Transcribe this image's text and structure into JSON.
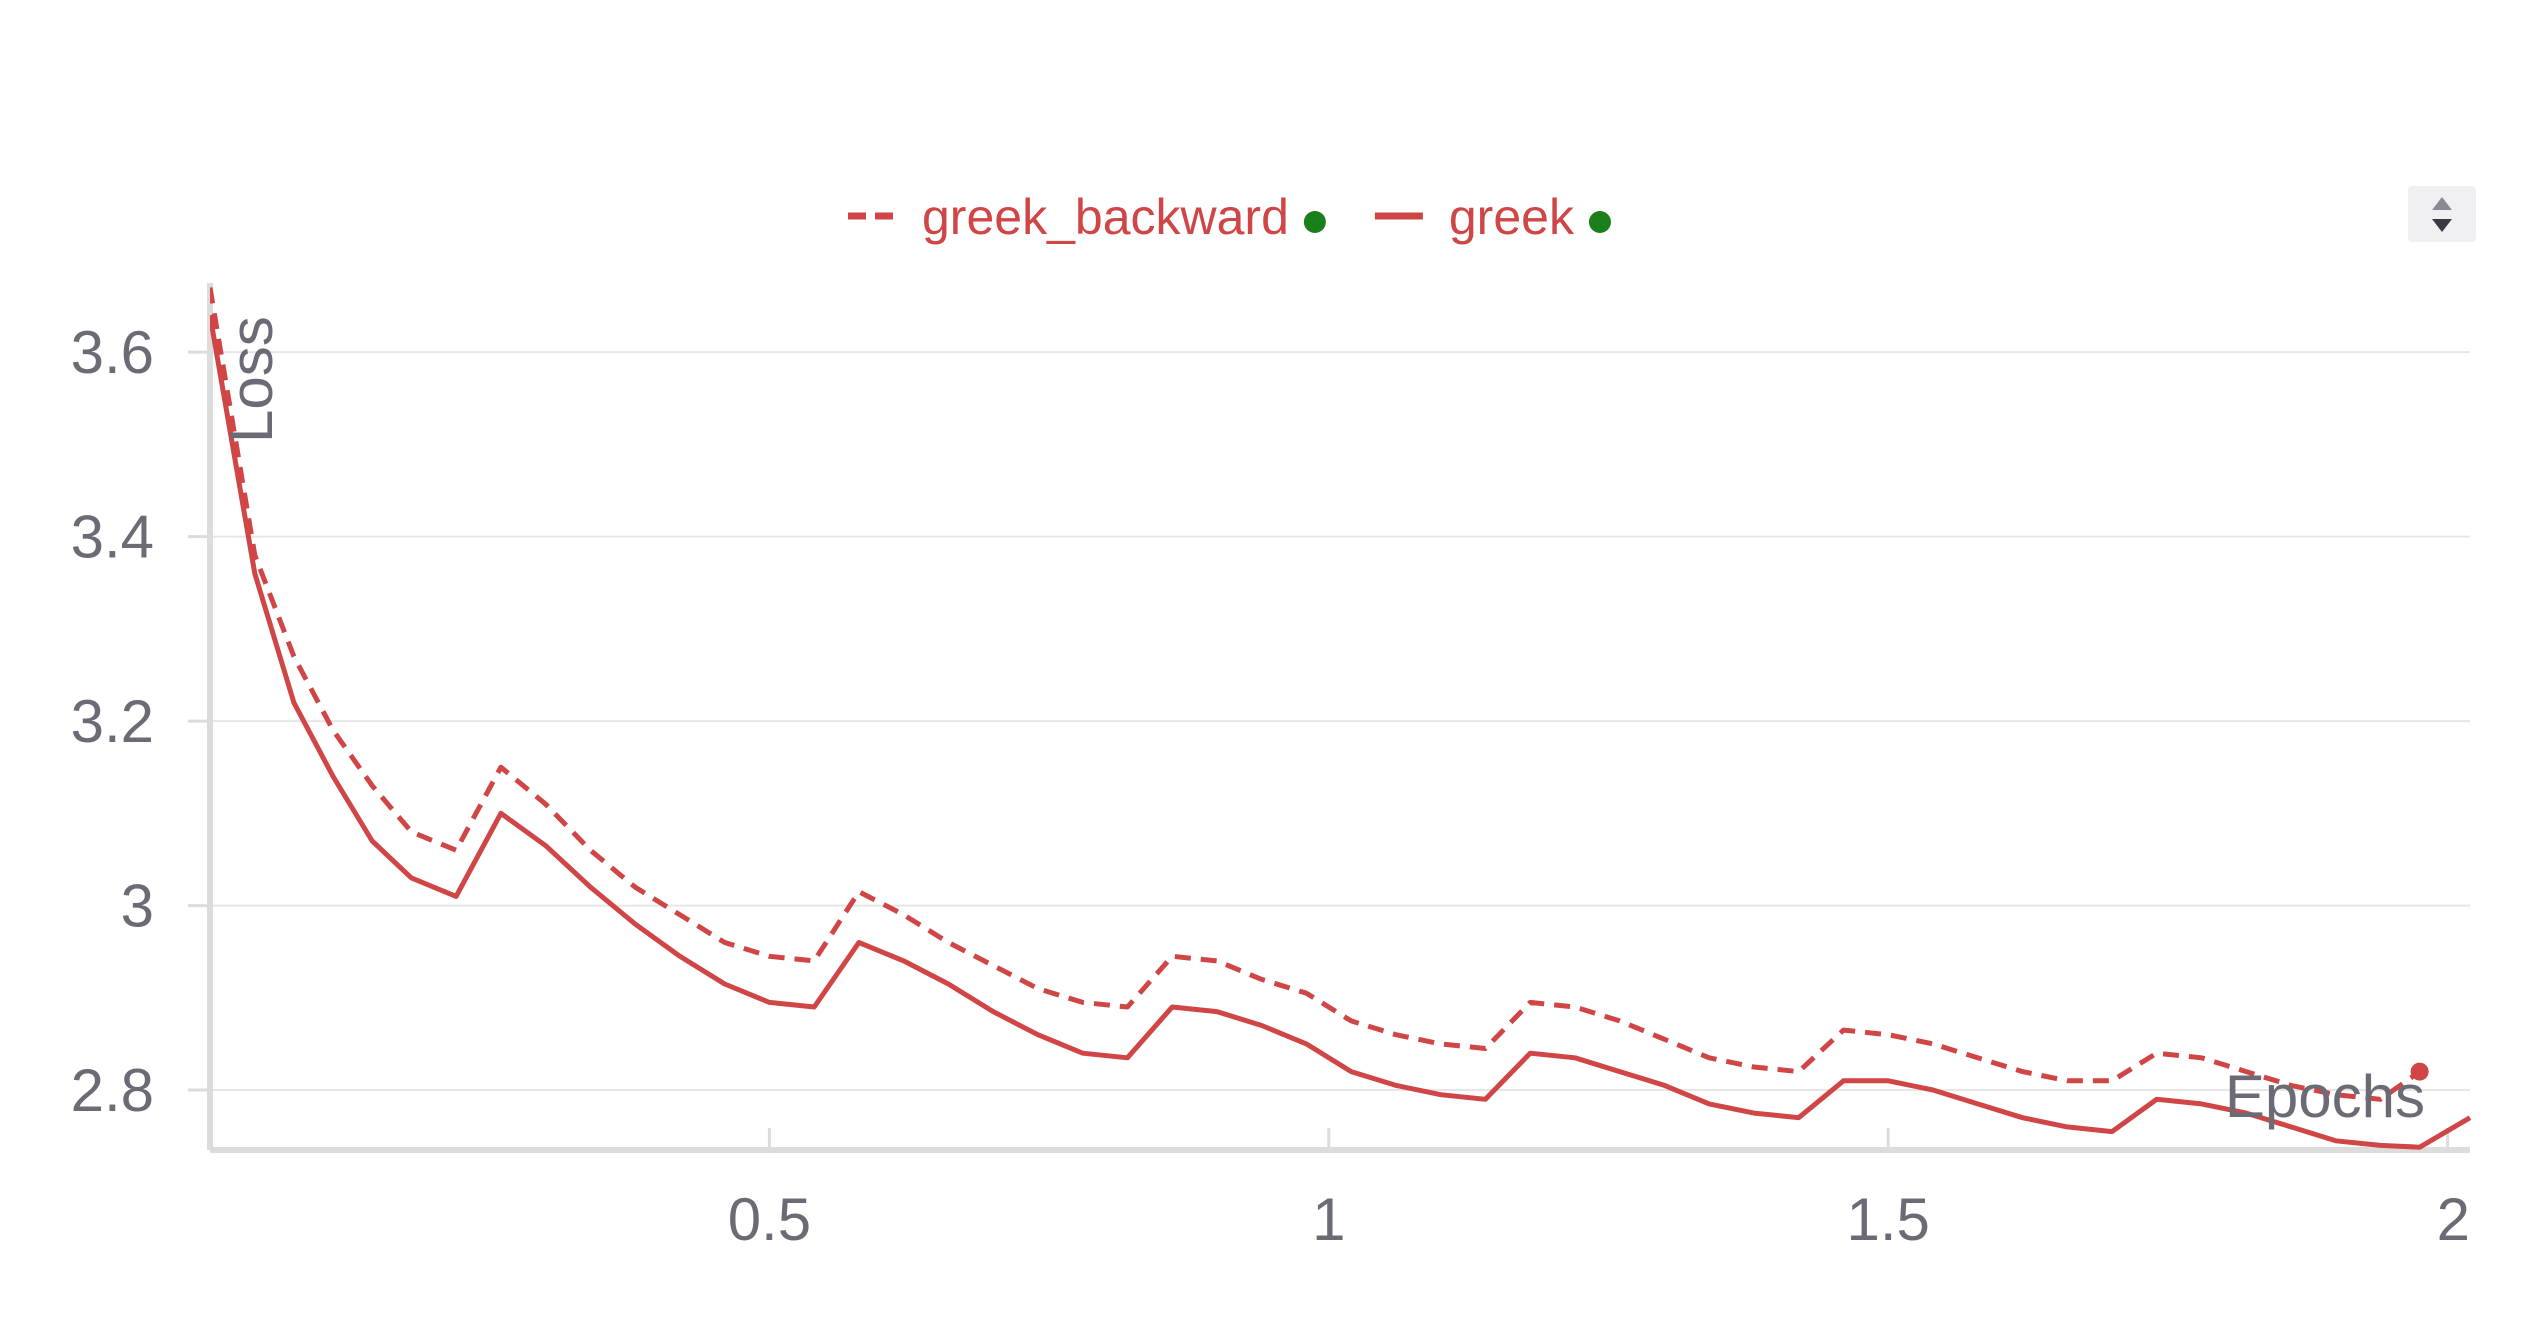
{
  "chart_data": {
    "type": "line",
    "title": "",
    "xlabel": "Epochs",
    "ylabel": "Loss",
    "xlim": [
      0.0,
      2.02
    ],
    "ylim": [
      2.735,
      3.675
    ],
    "x_ticks": [
      0.5,
      1,
      1.5,
      2
    ],
    "x_tick_labels": [
      "0.5",
      "1",
      "1.5",
      "2"
    ],
    "y_ticks": [
      2.8,
      3.0,
      3.2,
      3.4,
      3.6
    ],
    "y_tick_labels": [
      "2.8",
      "3",
      "3.2",
      "3.4",
      "3.6"
    ],
    "grid": true,
    "legend_position": "top-center",
    "series": [
      {
        "name": "greek_backward",
        "dash": "dashed",
        "color": "#d04545",
        "status_color": "#1a7f1a",
        "x": [
          0.0,
          0.04,
          0.075,
          0.11,
          0.145,
          0.18,
          0.22,
          0.26,
          0.3,
          0.34,
          0.38,
          0.42,
          0.46,
          0.5,
          0.54,
          0.58,
          0.62,
          0.66,
          0.7,
          0.74,
          0.78,
          0.82,
          0.86,
          0.9,
          0.94,
          0.98,
          1.02,
          1.06,
          1.1,
          1.14,
          1.18,
          1.22,
          1.26,
          1.3,
          1.34,
          1.38,
          1.42,
          1.46,
          1.5,
          1.54,
          1.58,
          1.62,
          1.66,
          1.7,
          1.74,
          1.78,
          1.82,
          1.86,
          1.9,
          1.94,
          1.975
        ],
        "values": [
          3.67,
          3.38,
          3.27,
          3.19,
          3.13,
          3.08,
          3.06,
          3.15,
          3.11,
          3.06,
          3.02,
          2.99,
          2.96,
          2.945,
          2.94,
          3.015,
          2.99,
          2.96,
          2.935,
          2.91,
          2.895,
          2.89,
          2.945,
          2.94,
          2.92,
          2.905,
          2.875,
          2.86,
          2.85,
          2.845,
          2.895,
          2.89,
          2.875,
          2.855,
          2.835,
          2.825,
          2.82,
          2.865,
          2.86,
          2.85,
          2.835,
          2.82,
          2.81,
          2.81,
          2.84,
          2.835,
          2.82,
          2.805,
          2.795,
          2.79,
          2.82
        ]
      },
      {
        "name": "greek",
        "dash": "solid",
        "color": "#d04545",
        "status_color": "#1a7f1a",
        "x": [
          0.0,
          0.04,
          0.075,
          0.11,
          0.145,
          0.18,
          0.22,
          0.26,
          0.3,
          0.34,
          0.38,
          0.42,
          0.46,
          0.5,
          0.54,
          0.58,
          0.62,
          0.66,
          0.7,
          0.74,
          0.78,
          0.82,
          0.86,
          0.9,
          0.94,
          0.98,
          1.02,
          1.06,
          1.1,
          1.14,
          1.18,
          1.22,
          1.26,
          1.3,
          1.34,
          1.38,
          1.42,
          1.46,
          1.5,
          1.54,
          1.58,
          1.62,
          1.66,
          1.7,
          1.74,
          1.78,
          1.82,
          1.86,
          1.9,
          1.94,
          1.975,
          2.02
        ],
        "values": [
          3.64,
          3.36,
          3.22,
          3.14,
          3.07,
          3.03,
          3.01,
          3.1,
          3.065,
          3.02,
          2.98,
          2.945,
          2.915,
          2.895,
          2.89,
          2.96,
          2.94,
          2.915,
          2.885,
          2.86,
          2.84,
          2.835,
          2.89,
          2.885,
          2.87,
          2.85,
          2.82,
          2.805,
          2.795,
          2.79,
          2.84,
          2.835,
          2.82,
          2.805,
          2.785,
          2.775,
          2.77,
          2.81,
          2.81,
          2.8,
          2.785,
          2.77,
          2.76,
          2.755,
          2.79,
          2.785,
          2.775,
          2.76,
          2.745,
          2.74,
          2.738,
          2.77
        ]
      }
    ]
  },
  "legend_control": {
    "icon": "sort-up-down-icon"
  }
}
